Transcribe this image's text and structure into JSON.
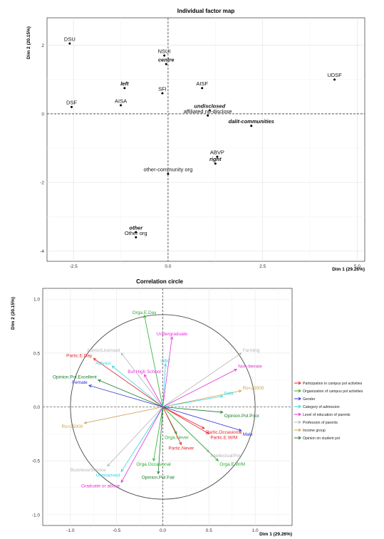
{
  "chart_data": [
    {
      "type": "scatter",
      "title": "Individual factor map",
      "xlabel": "Dim 1 (29.26%)",
      "ylabel": "Dim 2 (20.15%)",
      "xlim": [
        -3.2,
        5.2
      ],
      "ylim": [
        -4.3,
        2.8
      ],
      "x_ticks": [
        -2.5,
        0.0,
        2.5,
        5.0
      ],
      "y_ticks": [
        -4,
        -2,
        0,
        2
      ],
      "x_tick_labels": [
        "-2.5",
        "0.0",
        "2.5",
        "5.0"
      ],
      "y_tick_labels": [
        "-4",
        "-2",
        "0",
        "2"
      ],
      "grid": true,
      "reference_lines": {
        "x": 0,
        "y": 0
      },
      "points": [
        {
          "label": "DSU",
          "x": -2.6,
          "y": 2.05,
          "style": "normal"
        },
        {
          "label": "NSUI",
          "x": -0.1,
          "y": 1.7,
          "style": "normal"
        },
        {
          "label": "centre",
          "x": -0.05,
          "y": 1.45,
          "style": "bold-italic"
        },
        {
          "label": "UDSF",
          "x": 4.4,
          "y": 1.0,
          "style": "normal"
        },
        {
          "label": "left",
          "x": -1.15,
          "y": 0.75,
          "style": "bold-italic"
        },
        {
          "label": "AISF",
          "x": 0.9,
          "y": 0.75,
          "style": "normal"
        },
        {
          "label": "SFI",
          "x": -0.15,
          "y": 0.6,
          "style": "normal"
        },
        {
          "label": "DSF",
          "x": -2.55,
          "y": 0.2,
          "style": "normal"
        },
        {
          "label": "AISA",
          "x": -1.25,
          "y": 0.25,
          "style": "normal"
        },
        {
          "label": "undisclosed",
          "x": 1.1,
          "y": 0.1,
          "style": "bold-italic"
        },
        {
          "label": "affiliated no-disclose",
          "x": 1.05,
          "y": -0.05,
          "style": "normal"
        },
        {
          "label": "dalit-communities",
          "x": 2.2,
          "y": -0.35,
          "style": "bold-italic"
        },
        {
          "label": "ABVP",
          "x": 1.3,
          "y": -1.25,
          "style": "normal"
        },
        {
          "label": "right",
          "x": 1.25,
          "y": -1.45,
          "style": "bold-italic"
        },
        {
          "label": "other-community org",
          "x": 0.0,
          "y": -1.75,
          "style": "normal"
        },
        {
          "label": "other",
          "x": -0.85,
          "y": -3.45,
          "style": "bold-italic"
        },
        {
          "label": "Other org",
          "x": -0.85,
          "y": -3.6,
          "style": "normal"
        }
      ]
    },
    {
      "type": "scatter",
      "title": "Correlation circle",
      "xlabel": "Dim 1 (29.26%)",
      "ylabel": "Dim 2 (20.15%)",
      "xlim": [
        -1.3,
        1.4
      ],
      "ylim": [
        -1.1,
        1.1
      ],
      "x_ticks": [
        -1.0,
        -0.5,
        0.0,
        0.5,
        1.0
      ],
      "y_ticks": [
        -1.0,
        -0.5,
        0.0,
        0.5,
        1.0
      ],
      "x_tick_labels": [
        "-1.0",
        "-0.5",
        "0.0",
        "0.5",
        "1.0"
      ],
      "y_tick_labels": [
        "-1.0",
        "-0.5",
        "0.0",
        "0.5",
        "1.0"
      ],
      "grid": true,
      "unit_circle": true,
      "legend_position": "right",
      "groups": [
        {
          "name": "Participation in campus pol activities",
          "color": "#e8202a"
        },
        {
          "name": "Organization of campus pol activities",
          "color": "#27b02a"
        },
        {
          "name": "Gender",
          "color": "#2b2fd6"
        },
        {
          "name": "Category of admission",
          "color": "#35d3e0"
        },
        {
          "name": "Level of education of parents",
          "color": "#e12fd8"
        },
        {
          "name": "Profession of parents",
          "color": "#b4b4b4"
        },
        {
          "name": "Income group",
          "color": "#c8a24a"
        },
        {
          "name": "Opinion on student pol",
          "color": "#1a7a2a"
        }
      ],
      "arrows": [
        {
          "label": "Orga.E.Day",
          "x": -0.2,
          "y": 0.85,
          "group": 1
        },
        {
          "label": "Undergraduate",
          "x": 0.1,
          "y": 0.65,
          "group": 4
        },
        {
          "label": "Admin/Licensed",
          "x": -0.45,
          "y": 0.5,
          "group": 5
        },
        {
          "label": "Partic.E.Day",
          "x": -0.75,
          "y": 0.45,
          "group": 0
        },
        {
          "label": "Adivasi",
          "x": -0.55,
          "y": 0.38,
          "group": 3
        },
        {
          "label": "OBC",
          "x": 0.03,
          "y": 0.4,
          "group": 3
        },
        {
          "label": "Opinion.Pol.Excellent",
          "x": -0.7,
          "y": 0.25,
          "group": 7
        },
        {
          "label": "But High School",
          "x": -0.2,
          "y": 0.3,
          "group": 4
        },
        {
          "label": "Female",
          "x": -0.8,
          "y": 0.2,
          "group": 2
        },
        {
          "label": "Farming",
          "x": 0.85,
          "y": 0.5,
          "group": 5
        },
        {
          "label": "Non-literate",
          "x": 0.8,
          "y": 0.35,
          "group": 4
        },
        {
          "label": "Rs<25000",
          "x": 0.85,
          "y": 0.15,
          "group": 6
        },
        {
          "label": "Dalit",
          "x": 0.65,
          "y": 0.1,
          "group": 3
        },
        {
          "label": "Opinion.Pol.Poor",
          "x": 0.65,
          "y": -0.05,
          "group": 7
        },
        {
          "label": "Rs>25000",
          "x": -0.85,
          "y": -0.15,
          "group": 6
        },
        {
          "label": "Partic.Occasional",
          "x": 0.45,
          "y": -0.2,
          "group": 0
        },
        {
          "label": "Male",
          "x": 0.85,
          "y": -0.22,
          "group": 2
        },
        {
          "label": "Partic.E.W/M",
          "x": 0.5,
          "y": -0.25,
          "group": 0
        },
        {
          "label": "Orga.Never",
          "x": 0.15,
          "y": -0.25,
          "group": 1
        },
        {
          "label": "Partic.Never",
          "x": 0.2,
          "y": -0.35,
          "group": 0
        },
        {
          "label": "Intellectual/Pol",
          "x": 0.5,
          "y": -0.42,
          "group": 5
        },
        {
          "label": "Orga.E.W/M",
          "x": 0.6,
          "y": -0.5,
          "group": 1
        },
        {
          "label": "Orga.Occasional",
          "x": -0.1,
          "y": -0.5,
          "group": 1
        },
        {
          "label": "Business/Service",
          "x": -0.6,
          "y": -0.55,
          "group": 5
        },
        {
          "label": "Unreserved",
          "x": -0.45,
          "y": -0.6,
          "group": 3
        },
        {
          "label": "Opinion.Pol.Fair",
          "x": -0.05,
          "y": -0.62,
          "group": 7
        },
        {
          "label": "Graduate or above",
          "x": -0.45,
          "y": -0.7,
          "group": 4
        }
      ]
    }
  ]
}
